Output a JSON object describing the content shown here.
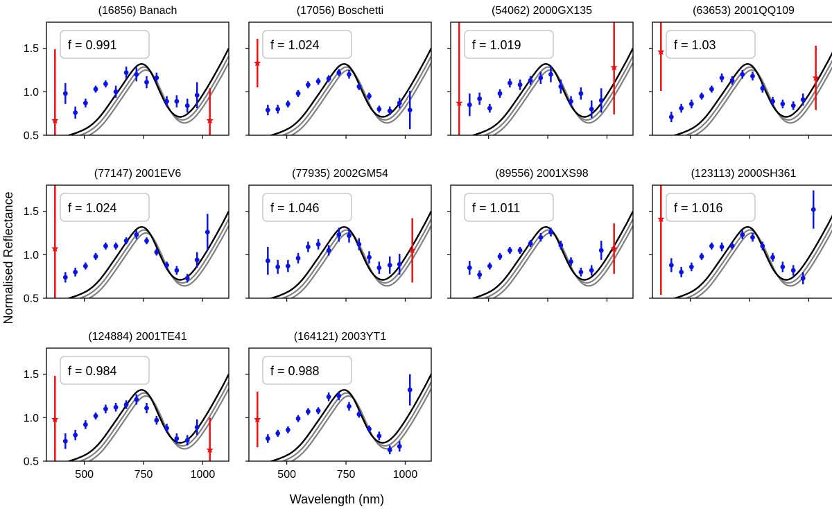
{
  "figure": {
    "ylabel": "Normalised Reflectance",
    "xlabel": "Wavelength (nm)"
  },
  "colors": {
    "model_main": "#000000",
    "model_alt": "#808080",
    "points": "#0a14e6",
    "flagged": "#ee1111",
    "annotation_border": "#c8c8c8"
  },
  "axes": {
    "xlim": [
      340,
      1110
    ],
    "ylim": [
      0.5,
      1.8
    ],
    "xticks": [
      500,
      750,
      1000
    ],
    "xtick_labels": [
      "500",
      "750",
      "1000"
    ],
    "yticks": [
      0.5,
      1.0,
      1.5
    ],
    "ytick_labels": [
      "0.5",
      "1.0",
      "1.5"
    ]
  },
  "chart_data": [
    {
      "type": "scatter",
      "title": "(16856) Banach",
      "annotation": "f = 0.991",
      "points": [
        [
          420,
          0.98,
          0.12
        ],
        [
          462,
          0.76,
          0.07
        ],
        [
          505,
          0.87,
          0.05
        ],
        [
          548,
          1.03,
          0.04
        ],
        [
          590,
          1.09,
          0.04
        ],
        [
          633,
          1.0,
          0.07
        ],
        [
          677,
          1.22,
          0.07
        ],
        [
          720,
          1.2,
          0.08
        ],
        [
          763,
          1.11,
          0.07
        ],
        [
          805,
          1.16,
          0.06
        ],
        [
          848,
          0.89,
          0.06
        ],
        [
          890,
          0.89,
          0.07
        ],
        [
          935,
          0.84,
          0.08
        ],
        [
          976,
          0.96,
          0.15
        ]
      ],
      "flagged": [
        [
          376,
          0.67,
          0.82
        ],
        [
          1030,
          0.67,
          0.37
        ]
      ]
    },
    {
      "type": "scatter",
      "title": "(17056) Boschetti",
      "annotation": "f = 1.024",
      "points": [
        [
          420,
          0.79,
          0.06
        ],
        [
          462,
          0.8,
          0.05
        ],
        [
          505,
          0.86,
          0.04
        ],
        [
          548,
          0.98,
          0.04
        ],
        [
          590,
          1.08,
          0.04
        ],
        [
          633,
          1.12,
          0.04
        ],
        [
          677,
          1.15,
          0.04
        ],
        [
          720,
          1.22,
          0.04
        ],
        [
          763,
          1.2,
          0.05
        ],
        [
          805,
          1.06,
          0.04
        ],
        [
          848,
          0.95,
          0.04
        ],
        [
          890,
          0.8,
          0.04
        ],
        [
          935,
          0.78,
          0.05
        ],
        [
          976,
          0.87,
          0.06
        ],
        [
          1020,
          0.79,
          0.22
        ]
      ],
      "flagged": [
        [
          376,
          1.33,
          0.28
        ]
      ]
    },
    {
      "type": "scatter",
      "title": "(54062) 2000GX135",
      "annotation": "f = 1.019",
      "points": [
        [
          420,
          0.85,
          0.13
        ],
        [
          462,
          0.92,
          0.07
        ],
        [
          505,
          0.81,
          0.05
        ],
        [
          548,
          0.98,
          0.05
        ],
        [
          590,
          1.1,
          0.05
        ],
        [
          633,
          1.08,
          0.06
        ],
        [
          677,
          1.13,
          0.05
        ],
        [
          720,
          1.16,
          0.07
        ],
        [
          763,
          1.2,
          0.09
        ],
        [
          805,
          1.06,
          0.08
        ],
        [
          848,
          0.89,
          0.06
        ],
        [
          890,
          0.98,
          0.07
        ],
        [
          935,
          0.8,
          0.1
        ],
        [
          976,
          0.9,
          0.14
        ]
      ],
      "flagged": [
        [
          376,
          0.87,
          0.95
        ],
        [
          1030,
          1.28,
          0.54
        ]
      ]
    },
    {
      "type": "scatter",
      "title": "(63653) 2001QQ109",
      "annotation": "f = 1.03",
      "points": [
        [
          420,
          0.71,
          0.06
        ],
        [
          462,
          0.81,
          0.05
        ],
        [
          505,
          0.86,
          0.05
        ],
        [
          548,
          0.95,
          0.04
        ],
        [
          590,
          1.03,
          0.04
        ],
        [
          633,
          1.16,
          0.05
        ],
        [
          677,
          1.13,
          0.05
        ],
        [
          720,
          1.2,
          0.05
        ],
        [
          763,
          1.18,
          0.05
        ],
        [
          805,
          1.04,
          0.05
        ],
        [
          848,
          0.89,
          0.05
        ],
        [
          890,
          0.86,
          0.05
        ],
        [
          935,
          0.84,
          0.05
        ],
        [
          976,
          0.91,
          0.07
        ]
      ],
      "flagged": [
        [
          376,
          1.46,
          0.45
        ],
        [
          1030,
          1.16,
          0.37
        ]
      ]
    },
    {
      "type": "scatter",
      "title": "(77147) 2001EV6",
      "annotation": "f = 1.024",
      "points": [
        [
          420,
          0.74,
          0.06
        ],
        [
          462,
          0.8,
          0.05
        ],
        [
          505,
          0.87,
          0.04
        ],
        [
          548,
          0.98,
          0.04
        ],
        [
          590,
          1.1,
          0.04
        ],
        [
          633,
          1.1,
          0.04
        ],
        [
          677,
          1.16,
          0.04
        ],
        [
          720,
          1.23,
          0.05
        ],
        [
          763,
          1.16,
          0.04
        ],
        [
          805,
          1.03,
          0.04
        ],
        [
          848,
          0.88,
          0.04
        ],
        [
          890,
          0.82,
          0.05
        ],
        [
          935,
          0.73,
          0.05
        ],
        [
          976,
          0.94,
          0.09
        ],
        [
          1020,
          1.26,
          0.21
        ]
      ],
      "flagged": [
        [
          376,
          1.07,
          1.1
        ]
      ]
    },
    {
      "type": "scatter",
      "title": "(77935) 2002GM54",
      "annotation": "f = 1.046",
      "points": [
        [
          420,
          0.93,
          0.16
        ],
        [
          462,
          0.86,
          0.08
        ],
        [
          505,
          0.87,
          0.07
        ],
        [
          548,
          0.96,
          0.06
        ],
        [
          590,
          1.09,
          0.06
        ],
        [
          633,
          1.12,
          0.06
        ],
        [
          677,
          1.05,
          0.06
        ],
        [
          720,
          1.23,
          0.08
        ],
        [
          763,
          1.22,
          0.08
        ],
        [
          805,
          1.12,
          0.07
        ],
        [
          848,
          0.97,
          0.07
        ],
        [
          890,
          0.85,
          0.07
        ],
        [
          935,
          0.88,
          0.1
        ],
        [
          976,
          0.89,
          0.12
        ]
      ],
      "flagged": [
        [
          1030,
          1.05,
          0.37
        ]
      ]
    },
    {
      "type": "scatter",
      "title": "(89556) 2001XS98",
      "annotation": "f = 1.011",
      "points": [
        [
          420,
          0.85,
          0.08
        ],
        [
          462,
          0.77,
          0.05
        ],
        [
          505,
          0.87,
          0.04
        ],
        [
          548,
          0.98,
          0.04
        ],
        [
          590,
          1.05,
          0.04
        ],
        [
          633,
          1.05,
          0.04
        ],
        [
          677,
          1.13,
          0.04
        ],
        [
          720,
          1.2,
          0.05
        ],
        [
          763,
          1.26,
          0.05
        ],
        [
          805,
          1.11,
          0.05
        ],
        [
          848,
          0.92,
          0.05
        ],
        [
          890,
          0.8,
          0.05
        ],
        [
          935,
          0.82,
          0.06
        ],
        [
          976,
          1.05,
          0.11
        ]
      ],
      "flagged": [
        [
          1030,
          1.07,
          0.29
        ]
      ]
    },
    {
      "type": "scatter",
      "title": "(123113) 2000SH361",
      "annotation": "f = 1.016",
      "points": [
        [
          420,
          0.88,
          0.08
        ],
        [
          462,
          0.8,
          0.06
        ],
        [
          505,
          0.86,
          0.05
        ],
        [
          548,
          0.98,
          0.04
        ],
        [
          590,
          1.1,
          0.04
        ],
        [
          633,
          1.09,
          0.05
        ],
        [
          677,
          1.1,
          0.04
        ],
        [
          720,
          1.23,
          0.05
        ],
        [
          763,
          1.2,
          0.05
        ],
        [
          805,
          1.1,
          0.05
        ],
        [
          848,
          0.97,
          0.05
        ],
        [
          890,
          0.86,
          0.06
        ],
        [
          935,
          0.82,
          0.06
        ],
        [
          976,
          0.73,
          0.07
        ],
        [
          1020,
          1.52,
          0.22
        ]
      ],
      "flagged": [
        [
          376,
          1.41,
          0.87
        ]
      ]
    },
    {
      "type": "scatter",
      "title": "(124884) 2001TE41",
      "annotation": "f = 0.984",
      "points": [
        [
          420,
          0.73,
          0.09
        ],
        [
          462,
          0.8,
          0.06
        ],
        [
          505,
          0.92,
          0.05
        ],
        [
          548,
          1.02,
          0.04
        ],
        [
          590,
          1.1,
          0.05
        ],
        [
          633,
          1.12,
          0.05
        ],
        [
          677,
          1.15,
          0.05
        ],
        [
          720,
          1.21,
          0.06
        ],
        [
          763,
          1.11,
          0.06
        ],
        [
          805,
          0.97,
          0.05
        ],
        [
          848,
          0.88,
          0.05
        ],
        [
          890,
          0.76,
          0.06
        ],
        [
          935,
          0.74,
          0.06
        ],
        [
          976,
          0.89,
          0.09
        ]
      ],
      "flagged": [
        [
          376,
          0.98,
          0.5
        ],
        [
          1030,
          0.63,
          0.37
        ]
      ]
    },
    {
      "type": "scatter",
      "title": "(164121) 2003YT1",
      "annotation": "f = 0.988",
      "points": [
        [
          420,
          0.76,
          0.05
        ],
        [
          462,
          0.82,
          0.04
        ],
        [
          505,
          0.86,
          0.04
        ],
        [
          548,
          0.99,
          0.04
        ],
        [
          590,
          1.07,
          0.04
        ],
        [
          633,
          1.08,
          0.04
        ],
        [
          677,
          1.24,
          0.05
        ],
        [
          720,
          1.25,
          0.05
        ],
        [
          763,
          1.13,
          0.05
        ],
        [
          805,
          1.04,
          0.04
        ],
        [
          848,
          0.87,
          0.04
        ],
        [
          890,
          0.79,
          0.05
        ],
        [
          935,
          0.63,
          0.05
        ],
        [
          976,
          0.67,
          0.06
        ],
        [
          1020,
          1.32,
          0.18
        ]
      ],
      "flagged": [
        [
          376,
          0.98,
          0.32
        ]
      ]
    }
  ]
}
